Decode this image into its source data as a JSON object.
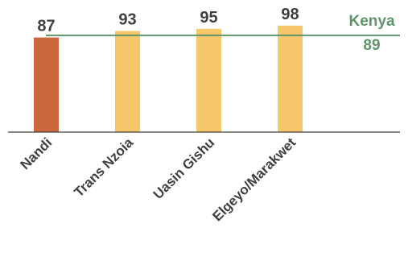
{
  "chart_data": {
    "type": "bar",
    "categories": [
      "Nandi",
      "Trans Nzoia",
      "Uasin Gishu",
      "Elgeyo/Marakwet"
    ],
    "values": [
      87,
      93,
      95,
      98
    ],
    "data_labels": [
      "87",
      "93",
      "95",
      "98"
    ],
    "bar_colors": [
      "#cd663a",
      "#f7c76b",
      "#f7c76b",
      "#f7c76b"
    ],
    "reference_line": {
      "name": "Kenya",
      "value": 89,
      "value_label": "89",
      "color": "#5e9569"
    },
    "axis_color": "#404040",
    "label_color": "#404040",
    "grid": false,
    "legend": "none",
    "title": "",
    "xlabel": "",
    "ylabel": ""
  }
}
